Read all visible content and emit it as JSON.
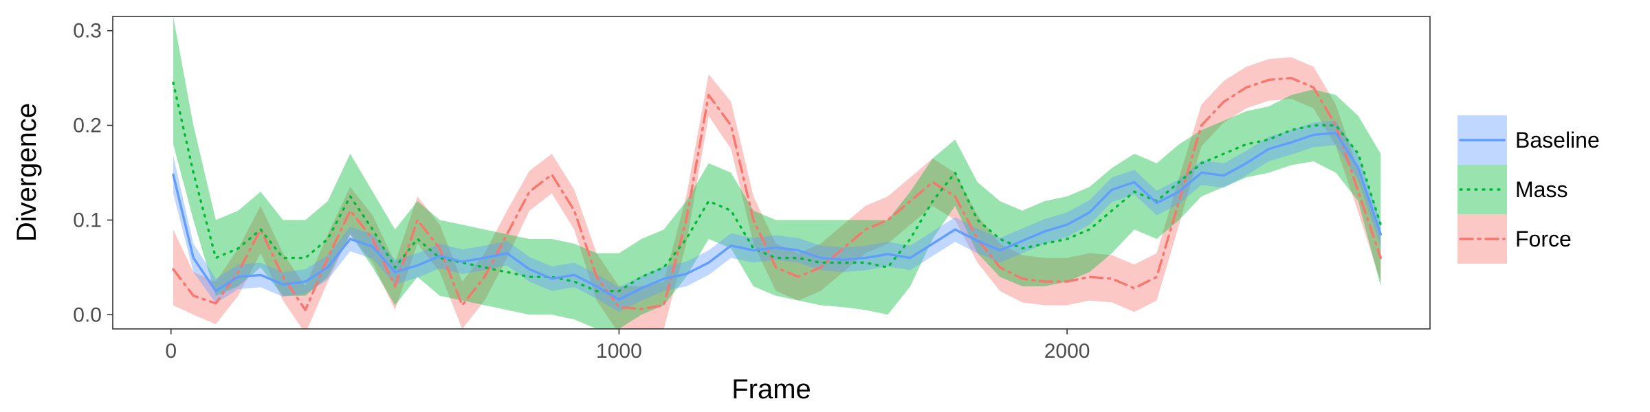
{
  "chart_data": {
    "type": "line",
    "xlabel": "Frame",
    "ylabel": "Divergence",
    "xlim": [
      -130,
      2810
    ],
    "ylim": [
      -0.015,
      0.315
    ],
    "x_ticks": [
      0,
      1000,
      2000
    ],
    "x_tick_labels": [
      "0",
      "1000",
      "2000"
    ],
    "y_ticks": [
      0.0,
      0.1,
      0.2,
      0.3
    ],
    "y_tick_labels": [
      "0.0",
      "0.1",
      "0.2",
      "0.3"
    ],
    "grid": false,
    "legend_position": "right",
    "series": [
      {
        "name": "Force",
        "color": "#F8766D",
        "band_color": "#F8766D",
        "dash": "dashdot",
        "x": [
          5,
          50,
          100,
          150,
          200,
          250,
          300,
          350,
          400,
          450,
          500,
          550,
          600,
          650,
          700,
          750,
          800,
          850,
          900,
          950,
          1000,
          1050,
          1100,
          1150,
          1200,
          1250,
          1300,
          1350,
          1400,
          1450,
          1500,
          1550,
          1600,
          1650,
          1700,
          1750,
          1800,
          1850,
          1900,
          1950,
          2000,
          2050,
          2100,
          2150,
          2200,
          2250,
          2300,
          2350,
          2400,
          2450,
          2500,
          2550,
          2600,
          2650,
          2700
        ],
        "y": [
          0.048,
          0.02,
          0.012,
          0.045,
          0.09,
          0.04,
          0.005,
          0.06,
          0.11,
          0.08,
          0.03,
          0.1,
          0.07,
          0.01,
          0.04,
          0.085,
          0.13,
          0.148,
          0.11,
          0.04,
          0.008,
          0.006,
          0.01,
          0.1,
          0.232,
          0.2,
          0.1,
          0.05,
          0.04,
          0.05,
          0.07,
          0.09,
          0.1,
          0.12,
          0.14,
          0.125,
          0.08,
          0.05,
          0.038,
          0.035,
          0.035,
          0.04,
          0.038,
          0.028,
          0.04,
          0.12,
          0.2,
          0.225,
          0.24,
          0.248,
          0.25,
          0.24,
          0.2,
          0.13,
          0.06
        ],
        "lower": [
          0.01,
          0.0,
          -0.01,
          0.02,
          0.065,
          0.015,
          -0.02,
          0.035,
          0.085,
          0.055,
          0.005,
          0.075,
          0.045,
          -0.015,
          0.015,
          0.06,
          0.11,
          0.128,
          0.09,
          0.015,
          -0.02,
          -0.02,
          -0.015,
          0.075,
          0.21,
          0.175,
          0.075,
          0.025,
          0.015,
          0.025,
          0.045,
          0.065,
          0.075,
          0.095,
          0.115,
          0.1,
          0.055,
          0.025,
          0.013,
          0.01,
          0.01,
          0.015,
          0.013,
          0.003,
          0.015,
          0.095,
          0.178,
          0.203,
          0.218,
          0.226,
          0.228,
          0.218,
          0.178,
          0.108,
          0.035
        ],
        "upper": [
          0.09,
          0.045,
          0.035,
          0.07,
          0.115,
          0.065,
          0.03,
          0.085,
          0.135,
          0.105,
          0.055,
          0.125,
          0.095,
          0.035,
          0.065,
          0.11,
          0.152,
          0.17,
          0.132,
          0.065,
          0.03,
          0.03,
          0.035,
          0.125,
          0.254,
          0.225,
          0.125,
          0.075,
          0.065,
          0.075,
          0.095,
          0.115,
          0.125,
          0.145,
          0.165,
          0.15,
          0.105,
          0.075,
          0.063,
          0.06,
          0.06,
          0.065,
          0.063,
          0.053,
          0.065,
          0.145,
          0.222,
          0.247,
          0.262,
          0.27,
          0.272,
          0.262,
          0.222,
          0.152,
          0.085
        ]
      },
      {
        "name": "Mass",
        "color": "#00BA38",
        "band_color": "#00BA38",
        "dash": "dotted",
        "x": [
          5,
          50,
          100,
          150,
          200,
          250,
          300,
          350,
          400,
          450,
          500,
          550,
          600,
          650,
          700,
          750,
          800,
          850,
          900,
          950,
          1000,
          1050,
          1100,
          1150,
          1200,
          1250,
          1300,
          1350,
          1400,
          1450,
          1500,
          1550,
          1600,
          1650,
          1700,
          1750,
          1800,
          1850,
          1900,
          1950,
          2000,
          2050,
          2100,
          2150,
          2200,
          2250,
          2300,
          2350,
          2400,
          2450,
          2500,
          2550,
          2600,
          2650,
          2700
        ],
        "y": [
          0.245,
          0.15,
          0.06,
          0.07,
          0.09,
          0.06,
          0.06,
          0.08,
          0.125,
          0.09,
          0.05,
          0.08,
          0.06,
          0.055,
          0.05,
          0.045,
          0.04,
          0.04,
          0.035,
          0.025,
          0.025,
          0.04,
          0.05,
          0.08,
          0.12,
          0.11,
          0.07,
          0.06,
          0.06,
          0.055,
          0.055,
          0.055,
          0.05,
          0.08,
          0.12,
          0.15,
          0.1,
          0.08,
          0.07,
          0.075,
          0.08,
          0.09,
          0.11,
          0.13,
          0.12,
          0.14,
          0.16,
          0.17,
          0.18,
          0.185,
          0.195,
          0.2,
          0.2,
          0.17,
          0.095
        ],
        "lower": [
          0.18,
          0.1,
          0.02,
          0.03,
          0.05,
          0.02,
          0.02,
          0.04,
          0.085,
          0.05,
          0.01,
          0.04,
          0.02,
          0.015,
          0.01,
          0.005,
          0.0,
          0.0,
          -0.005,
          -0.015,
          -0.015,
          0.0,
          0.01,
          0.04,
          0.08,
          0.07,
          0.03,
          0.02,
          0.015,
          0.01,
          0.008,
          0.005,
          0.0,
          0.03,
          0.08,
          0.115,
          0.065,
          0.04,
          0.03,
          0.03,
          0.035,
          0.045,
          0.065,
          0.09,
          0.08,
          0.1,
          0.125,
          0.135,
          0.145,
          0.15,
          0.158,
          0.162,
          0.15,
          0.12,
          0.03
        ],
        "upper": [
          0.315,
          0.2,
          0.1,
          0.11,
          0.13,
          0.1,
          0.1,
          0.12,
          0.17,
          0.13,
          0.09,
          0.12,
          0.1,
          0.095,
          0.09,
          0.085,
          0.08,
          0.08,
          0.075,
          0.065,
          0.065,
          0.08,
          0.09,
          0.12,
          0.16,
          0.15,
          0.11,
          0.1,
          0.1,
          0.1,
          0.1,
          0.1,
          0.1,
          0.13,
          0.165,
          0.185,
          0.14,
          0.12,
          0.11,
          0.12,
          0.125,
          0.135,
          0.155,
          0.17,
          0.16,
          0.18,
          0.195,
          0.205,
          0.215,
          0.22,
          0.232,
          0.238,
          0.232,
          0.21,
          0.17
        ]
      },
      {
        "name": "Baseline",
        "color": "#619CFF",
        "band_color": "#619CFF",
        "dash": "solid",
        "x": [
          5,
          50,
          100,
          150,
          200,
          250,
          300,
          350,
          400,
          450,
          500,
          550,
          600,
          650,
          700,
          750,
          800,
          850,
          900,
          950,
          1000,
          1050,
          1100,
          1150,
          1200,
          1250,
          1300,
          1350,
          1400,
          1450,
          1500,
          1550,
          1600,
          1650,
          1700,
          1750,
          1800,
          1850,
          1900,
          1950,
          2000,
          2050,
          2100,
          2150,
          2200,
          2250,
          2300,
          2350,
          2400,
          2450,
          2500,
          2550,
          2600,
          2650,
          2700
        ],
        "y": [
          0.148,
          0.06,
          0.025,
          0.04,
          0.042,
          0.032,
          0.035,
          0.05,
          0.08,
          0.072,
          0.045,
          0.052,
          0.062,
          0.056,
          0.06,
          0.065,
          0.048,
          0.038,
          0.042,
          0.03,
          0.016,
          0.028,
          0.038,
          0.043,
          0.055,
          0.073,
          0.068,
          0.071,
          0.068,
          0.06,
          0.058,
          0.06,
          0.064,
          0.06,
          0.075,
          0.09,
          0.078,
          0.068,
          0.078,
          0.088,
          0.095,
          0.108,
          0.132,
          0.14,
          0.118,
          0.13,
          0.15,
          0.147,
          0.16,
          0.175,
          0.182,
          0.19,
          0.192,
          0.155,
          0.085
        ],
        "lower": [
          0.128,
          0.045,
          0.012,
          0.027,
          0.029,
          0.019,
          0.022,
          0.037,
          0.067,
          0.059,
          0.032,
          0.039,
          0.049,
          0.043,
          0.047,
          0.052,
          0.035,
          0.025,
          0.029,
          0.017,
          0.003,
          0.015,
          0.025,
          0.03,
          0.042,
          0.06,
          0.055,
          0.058,
          0.055,
          0.047,
          0.045,
          0.047,
          0.051,
          0.047,
          0.062,
          0.077,
          0.065,
          0.055,
          0.065,
          0.075,
          0.082,
          0.095,
          0.119,
          0.127,
          0.105,
          0.117,
          0.137,
          0.134,
          0.147,
          0.162,
          0.169,
          0.177,
          0.179,
          0.142,
          0.072
        ],
        "upper": [
          0.168,
          0.075,
          0.038,
          0.053,
          0.055,
          0.045,
          0.048,
          0.063,
          0.093,
          0.085,
          0.058,
          0.065,
          0.075,
          0.069,
          0.073,
          0.078,
          0.061,
          0.051,
          0.055,
          0.043,
          0.029,
          0.041,
          0.051,
          0.056,
          0.068,
          0.086,
          0.081,
          0.084,
          0.081,
          0.073,
          0.071,
          0.073,
          0.077,
          0.073,
          0.088,
          0.103,
          0.091,
          0.081,
          0.091,
          0.101,
          0.108,
          0.121,
          0.145,
          0.153,
          0.131,
          0.143,
          0.163,
          0.16,
          0.173,
          0.188,
          0.195,
          0.203,
          0.205,
          0.168,
          0.098
        ]
      }
    ],
    "legend": [
      {
        "label": "Baseline",
        "color": "#619CFF",
        "dash": "solid"
      },
      {
        "label": "Mass",
        "color": "#00BA38",
        "dash": "dotted"
      },
      {
        "label": "Force",
        "color": "#F8766D",
        "dash": "dashdot"
      }
    ]
  }
}
